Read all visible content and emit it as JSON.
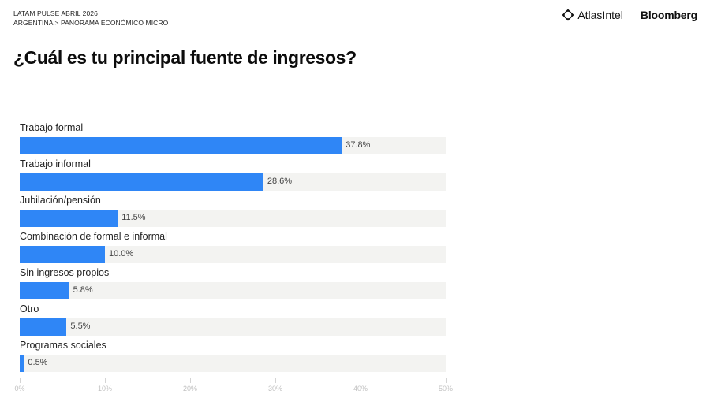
{
  "header": {
    "line1": "LATAM PULSE ABRIL 2026",
    "line2": "ARGENTINA > PANORAMA ECONÓMICO MICRO",
    "brand_atlas": "AtlasIntel",
    "brand_bloomberg": "Bloomberg"
  },
  "title": "¿Cuál es tu principal fuente de ingresos?",
  "colors": {
    "bar": "#2f86f6",
    "track": "#f3f3f1",
    "divider": "#9a9a9a"
  },
  "chart_data": {
    "type": "bar",
    "orientation": "horizontal",
    "title": "¿Cuál es tu principal fuente de ingresos?",
    "categories": [
      "Trabajo formal",
      "Trabajo informal",
      "Jubilación/pensión",
      "Combinación de formal e informal",
      "Sin ingresos propios",
      "Otro",
      "Programas sociales"
    ],
    "values": [
      37.8,
      28.6,
      11.5,
      10.0,
      5.8,
      5.5,
      0.5
    ],
    "value_labels": [
      "37.8%",
      "28.6%",
      "11.5%",
      "10.0%",
      "5.8%",
      "5.5%",
      "0.5%"
    ],
    "xlabel": "",
    "ylabel": "",
    "xlim": [
      0,
      50
    ],
    "x_ticks": [
      "0%",
      "10%",
      "20%",
      "30%",
      "40%",
      "50%"
    ],
    "grid": false,
    "legend": "none"
  }
}
